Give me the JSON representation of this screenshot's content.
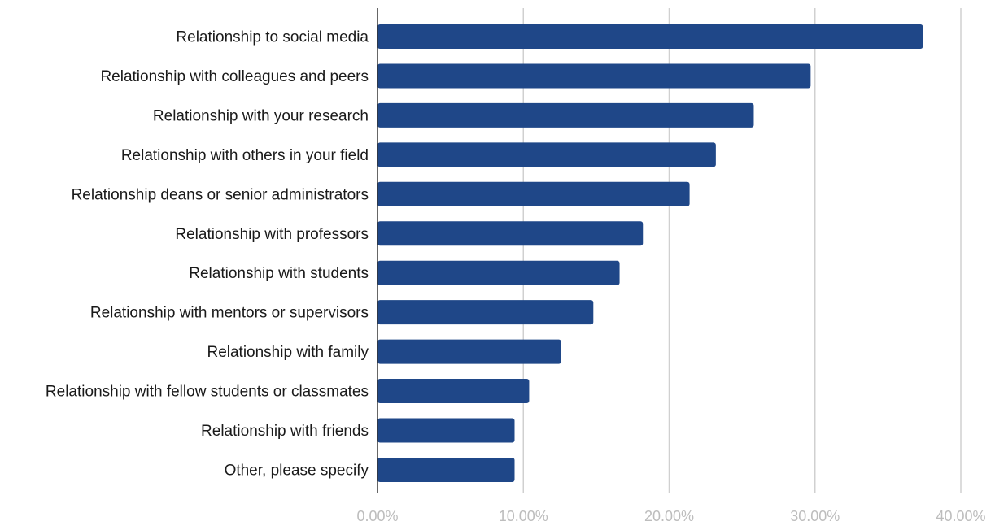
{
  "chart_data": {
    "type": "bar",
    "orientation": "horizontal",
    "categories": [
      "Relationship to social media",
      "Relationship with colleagues and peers",
      "Relationship with your research",
      "Relationship with others in your field",
      "Relationship deans or senior administrators",
      "Relationship with professors",
      "Relationship with students",
      "Relationship with mentors or supervisors",
      "Relationship with family",
      "Relationship with fellow students or classmates",
      "Relationship with friends",
      "Other, please specify"
    ],
    "values": [
      37.4,
      29.7,
      25.8,
      23.2,
      21.4,
      18.2,
      16.6,
      14.8,
      12.6,
      10.4,
      9.4,
      9.4
    ],
    "x_ticks": [
      "0.00%",
      "10.00%",
      "20.00%",
      "30.00%",
      "40.00%"
    ],
    "xlim": [
      0,
      40
    ],
    "title": "",
    "xlabel": "",
    "ylabel": "",
    "grid": "vertical",
    "legend": "none",
    "colors": {
      "bar": "#1f4788",
      "grid": "#d0d0d0",
      "tick_text": "#bdbdbd",
      "label_text": "#1a1a1a",
      "axis": "#333333"
    }
  }
}
